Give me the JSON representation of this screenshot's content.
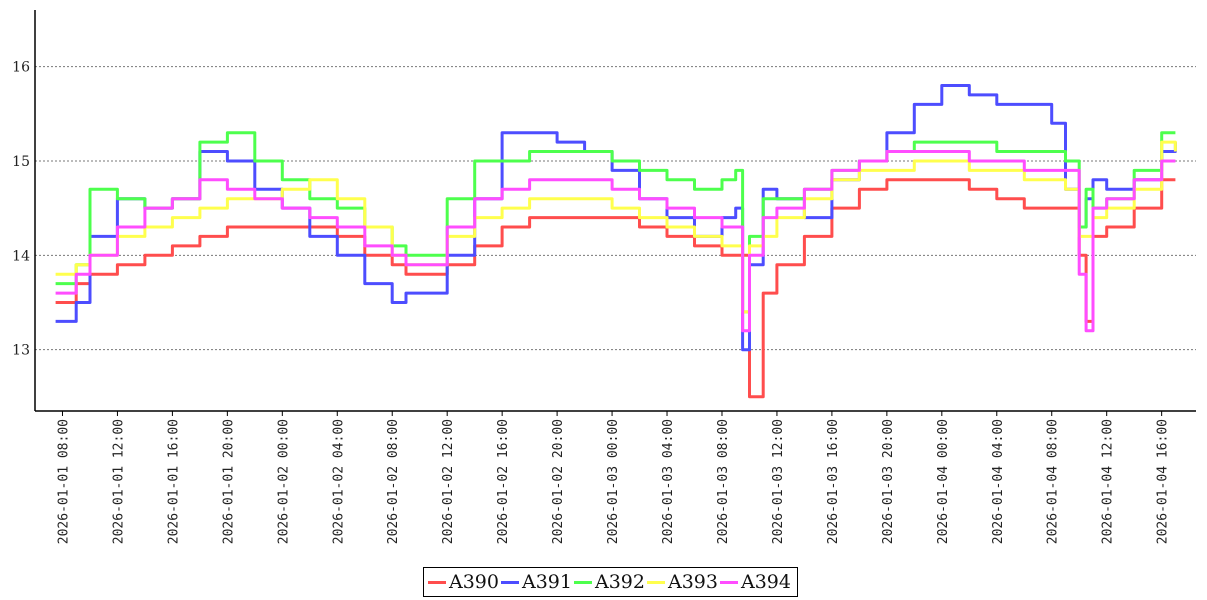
{
  "chart_data": {
    "type": "line",
    "title": "",
    "xlabel": "",
    "ylabel": "",
    "x_type": "datetime",
    "xlim": [
      "2026-01-01 06:00",
      "2026-01-04 18:30"
    ],
    "ylim": [
      12.35,
      16.6
    ],
    "yticks": [
      13,
      14,
      15,
      16
    ],
    "xticks": [
      "2026-01-01 08:00",
      "2026-01-01 12:00",
      "2026-01-01 16:00",
      "2026-01-01 20:00",
      "2026-01-02 00:00",
      "2026-01-02 04:00",
      "2026-01-02 08:00",
      "2026-01-02 12:00",
      "2026-01-02 16:00",
      "2026-01-02 20:00",
      "2026-01-03 00:00",
      "2026-01-03 04:00",
      "2026-01-03 08:00",
      "2026-01-03 12:00",
      "2026-01-03 16:00",
      "2026-01-03 20:00",
      "2026-01-04 00:00",
      "2026-01-04 04:00",
      "2026-01-04 08:00",
      "2026-01-04 12:00",
      "2026-01-04 16:00"
    ],
    "grid": "horizontal-dotted",
    "legend_position": "bottom-center",
    "x": [
      "2026-01-01 07:30",
      "2026-01-01 09:00",
      "2026-01-01 10:00",
      "2026-01-01 12:00",
      "2026-01-01 14:00",
      "2026-01-01 16:00",
      "2026-01-01 18:00",
      "2026-01-01 20:00",
      "2026-01-01 22:00",
      "2026-01-02 00:00",
      "2026-01-02 02:00",
      "2026-01-02 04:00",
      "2026-01-02 06:00",
      "2026-01-02 08:00",
      "2026-01-02 09:00",
      "2026-01-02 12:00",
      "2026-01-02 14:00",
      "2026-01-02 16:00",
      "2026-01-02 18:00",
      "2026-01-02 20:00",
      "2026-01-02 22:00",
      "2026-01-03 00:00",
      "2026-01-03 02:00",
      "2026-01-03 04:00",
      "2026-01-03 06:00",
      "2026-01-03 08:00",
      "2026-01-03 09:00",
      "2026-01-03 09:30",
      "2026-01-03 10:00",
      "2026-01-03 11:00",
      "2026-01-03 12:00",
      "2026-01-03 14:00",
      "2026-01-03 16:00",
      "2026-01-03 18:00",
      "2026-01-03 20:00",
      "2026-01-03 22:00",
      "2026-01-04 00:00",
      "2026-01-04 02:00",
      "2026-01-04 04:00",
      "2026-01-04 06:00",
      "2026-01-04 08:00",
      "2026-01-04 09:00",
      "2026-01-04 10:00",
      "2026-01-04 10:30",
      "2026-01-04 11:00",
      "2026-01-04 12:00",
      "2026-01-04 14:00",
      "2026-01-04 16:00",
      "2026-01-04 17:00"
    ],
    "series": [
      {
        "name": "A390",
        "color": "#ff4d4d",
        "values": [
          13.5,
          13.7,
          13.8,
          13.9,
          14.0,
          14.1,
          14.2,
          14.3,
          14.3,
          14.3,
          14.3,
          14.2,
          14.0,
          13.9,
          13.8,
          13.9,
          14.1,
          14.3,
          14.4,
          14.4,
          14.4,
          14.4,
          14.3,
          14.2,
          14.1,
          14.0,
          14.0,
          14.0,
          12.5,
          13.6,
          13.9,
          14.2,
          14.5,
          14.7,
          14.8,
          14.8,
          14.8,
          14.7,
          14.6,
          14.5,
          14.5,
          14.5,
          14.0,
          13.3,
          14.2,
          14.3,
          14.5,
          14.8,
          14.8
        ]
      },
      {
        "name": "A391",
        "color": "#4d4dff",
        "values": [
          13.3,
          13.5,
          14.2,
          14.6,
          14.5,
          14.6,
          15.1,
          15.0,
          14.7,
          14.5,
          14.2,
          14.0,
          13.7,
          13.5,
          13.6,
          14.0,
          14.6,
          15.3,
          15.3,
          15.2,
          15.1,
          14.9,
          14.6,
          14.4,
          14.2,
          14.4,
          14.5,
          13.0,
          13.9,
          14.7,
          14.6,
          14.4,
          14.8,
          15.0,
          15.3,
          15.6,
          15.8,
          15.7,
          15.6,
          15.6,
          15.4,
          14.7,
          14.3,
          14.6,
          14.8,
          14.7,
          14.8,
          15.1,
          15.2
        ]
      },
      {
        "name": "A392",
        "color": "#4dff4d",
        "values": [
          13.7,
          13.9,
          14.7,
          14.6,
          14.5,
          14.6,
          15.2,
          15.3,
          15.0,
          14.8,
          14.6,
          14.5,
          14.3,
          14.1,
          14.0,
          14.6,
          15.0,
          15.0,
          15.1,
          15.1,
          15.1,
          15.0,
          14.9,
          14.8,
          14.7,
          14.8,
          14.9,
          13.4,
          14.2,
          14.6,
          14.6,
          14.7,
          14.9,
          15.0,
          15.1,
          15.2,
          15.2,
          15.2,
          15.1,
          15.1,
          15.1,
          15.0,
          14.3,
          14.7,
          14.5,
          14.6,
          14.9,
          15.3,
          15.3
        ]
      },
      {
        "name": "A393",
        "color": "#ffff4d",
        "values": [
          13.8,
          13.9,
          14.0,
          14.2,
          14.3,
          14.4,
          14.5,
          14.6,
          14.6,
          14.7,
          14.8,
          14.6,
          14.3,
          14.0,
          13.9,
          14.2,
          14.4,
          14.5,
          14.6,
          14.6,
          14.6,
          14.5,
          14.4,
          14.3,
          14.2,
          14.1,
          14.1,
          13.4,
          14.1,
          14.2,
          14.4,
          14.6,
          14.8,
          14.9,
          14.9,
          15.0,
          15.0,
          14.9,
          14.9,
          14.8,
          14.8,
          14.7,
          14.2,
          14.2,
          14.4,
          14.5,
          14.7,
          15.2,
          15.1
        ]
      },
      {
        "name": "A394",
        "color": "#ff4dff",
        "values": [
          13.6,
          13.8,
          14.0,
          14.3,
          14.5,
          14.6,
          14.8,
          14.7,
          14.6,
          14.5,
          14.4,
          14.3,
          14.1,
          14.0,
          13.9,
          14.3,
          14.6,
          14.7,
          14.8,
          14.8,
          14.8,
          14.7,
          14.6,
          14.5,
          14.4,
          14.3,
          14.3,
          13.2,
          14.0,
          14.4,
          14.5,
          14.7,
          14.9,
          15.0,
          15.1,
          15.1,
          15.1,
          15.0,
          15.0,
          14.9,
          14.9,
          14.9,
          13.8,
          13.2,
          14.5,
          14.6,
          14.8,
          15.0,
          15.0
        ]
      }
    ]
  }
}
